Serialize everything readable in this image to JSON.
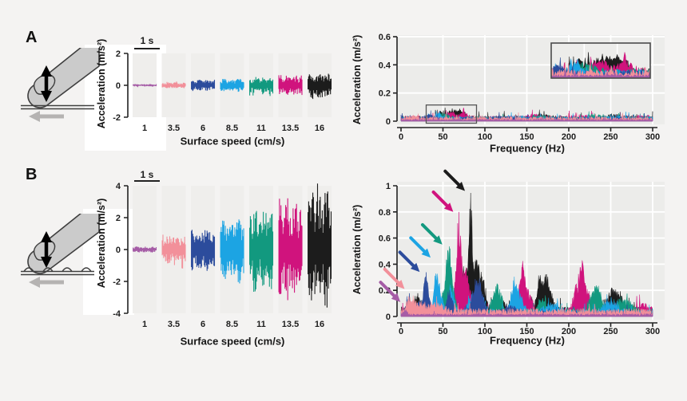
{
  "panel_labels": {
    "a": "A",
    "b": "B"
  },
  "icons": {
    "a": "finger-sliding-on-smooth-surface",
    "b": "finger-sliding-on-textured-surface"
  },
  "colors": {
    "page_bg": "#F4F3F2",
    "plot_bg": "#ECECEA",
    "strip_bg": "#EFEEEC",
    "grid": "#FFFFFF",
    "axis": "#222222",
    "annotation_box": "#555555",
    "slide_arrow": "#B5B3B2",
    "speed_palette": [
      "#A55CA6",
      "#F2909A",
      "#2C4C9C",
      "#1CA4E3",
      "#12997F",
      "#D0137D",
      "#1C1C1C"
    ]
  },
  "chart_data": [
    {
      "id": "A-time",
      "type": "line",
      "xlabel": "Surface speed (cm/s)",
      "ylabel": "Acceleration (m/s²)",
      "scalebar": "1 s",
      "categories": [
        "1",
        "3.5",
        "6",
        "8.5",
        "11",
        "13.5",
        "16"
      ],
      "colors": [
        "#A55CA6",
        "#F2909A",
        "#2C4C9C",
        "#1CA4E3",
        "#12997F",
        "#D0137D",
        "#1C1C1C"
      ],
      "amplitude": [
        0.08,
        0.17,
        0.33,
        0.4,
        0.55,
        0.62,
        0.8
      ],
      "ylim": [
        -2,
        2
      ],
      "yticks": [
        "2",
        "0",
        "-2"
      ]
    },
    {
      "id": "A-spec",
      "type": "area",
      "xlabel": "Frequency (Hz)",
      "ylabel": "Acceleration (m/s²)",
      "xlim": [
        0,
        300
      ],
      "ylim": [
        0,
        0.6
      ],
      "xticks": [
        "0",
        "50",
        "100",
        "150",
        "200",
        "250",
        "300"
      ],
      "yticks": [
        "0",
        "0.2",
        "0.4",
        "0.6"
      ],
      "zoom_box": {
        "x": [
          30,
          90
        ],
        "y": [
          0,
          0.115
        ]
      },
      "inset_region": {
        "x": [
          30,
          90
        ],
        "y": [
          0,
          0.13
        ]
      },
      "series": [
        {
          "name": "1 cm/s",
          "color": "#A55CA6",
          "baseline": 0.01,
          "peaks": []
        },
        {
          "name": "3.5 cm/s",
          "color": "#F2909A",
          "baseline": 0.022,
          "peaks": [
            [
              15,
              0.012,
              8
            ]
          ]
        },
        {
          "name": "6 cm/s",
          "color": "#2C4C9C",
          "baseline": 0.02,
          "peaks": [
            [
              10,
              0.02,
              3
            ],
            [
              33,
              0.028,
              4
            ],
            [
              120,
              0.01,
              10
            ]
          ]
        },
        {
          "name": "8.5 cm/s",
          "color": "#1CA4E3",
          "baseline": 0.022,
          "peaks": [
            [
              45,
              0.032,
              4
            ],
            [
              140,
              0.015,
              8
            ],
            [
              255,
              0.012,
              10
            ]
          ]
        },
        {
          "name": "11 cm/s",
          "color": "#12997F",
          "baseline": 0.024,
          "peaks": [
            [
              50,
              0.04,
              5
            ],
            [
              165,
              0.015,
              8
            ],
            [
              230,
              0.02,
              8
            ]
          ]
        },
        {
          "name": "13.5 cm/s",
          "color": "#D0137D",
          "baseline": 0.026,
          "peaks": [
            [
              58,
              0.05,
              5
            ],
            [
              75,
              0.04,
              4
            ],
            [
              160,
              0.022,
              6
            ],
            [
              215,
              0.015,
              8
            ],
            [
              290,
              0.02,
              6
            ]
          ]
        },
        {
          "name": "16 cm/s",
          "color": "#1C1C1C",
          "baseline": 0.026,
          "peaks": [
            [
              48,
              0.045,
              4
            ],
            [
              62,
              0.062,
              5
            ],
            [
              72,
              0.05,
              4
            ],
            [
              170,
              0.02,
              6
            ],
            [
              255,
              0.018,
              8
            ]
          ]
        }
      ]
    },
    {
      "id": "B-time",
      "type": "line",
      "xlabel": "Surface speed (cm/s)",
      "ylabel": "Acceleration (m/s²)",
      "scalebar": "1 s",
      "categories": [
        "1",
        "3.5",
        "6",
        "8.5",
        "11",
        "13.5",
        "16"
      ],
      "colors": [
        "#A55CA6",
        "#F2909A",
        "#2C4C9C",
        "#1CA4E3",
        "#12997F",
        "#D0137D",
        "#1C1C1C"
      ],
      "amplitude": [
        0.18,
        0.85,
        1.35,
        1.9,
        2.4,
        2.95,
        3.6
      ],
      "ylim": [
        -4,
        4
      ],
      "yticks": [
        "4",
        "2",
        "0",
        "-2",
        "-4"
      ]
    },
    {
      "id": "B-spec",
      "type": "area",
      "xlabel": "Frequency (Hz)",
      "ylabel": "Acceleration (m/s²)",
      "xlim": [
        0,
        300
      ],
      "ylim": [
        0,
        1
      ],
      "xticks": [
        "0",
        "50",
        "100",
        "150",
        "200",
        "250",
        "300"
      ],
      "yticks": [
        "0",
        "0.2",
        "0.4",
        "0.6",
        "0.8",
        "1"
      ],
      "series": [
        {
          "name": "1 cm/s",
          "color": "#A55CA6",
          "baseline": 0.015,
          "peaks": [
            [
              5,
              0.045,
              2
            ]
          ],
          "arrow": {
            "f": 4,
            "a": 0.08
          }
        },
        {
          "name": "3.5 cm/s",
          "color": "#F2909A",
          "baseline": 0.042,
          "peaks": [
            [
              11,
              0.125,
              4
            ],
            [
              22,
              0.06,
              5
            ],
            [
              35,
              0.05,
              6
            ],
            [
              48,
              0.04,
              6
            ]
          ],
          "arrow": {
            "f": 9,
            "a": 0.18
          }
        },
        {
          "name": "6 cm/s",
          "color": "#2C4C9C",
          "baseline": 0.032,
          "peaks": [
            [
              9,
              0.1,
              3
            ],
            [
              21,
              0.1,
              3
            ],
            [
              29,
              0.26,
              2.5
            ],
            [
              33,
              0.12,
              2.5
            ],
            [
              58,
              0.2,
              3
            ],
            [
              88,
              0.2,
              4
            ],
            [
              95,
              0.18,
              4
            ],
            [
              130,
              0.05,
              8
            ]
          ],
          "arrow": {
            "f": 27,
            "a": 0.31
          }
        },
        {
          "name": "8.5 cm/s",
          "color": "#1CA4E3",
          "baseline": 0.038,
          "peaks": [
            [
              42,
              0.36,
              2.5
            ],
            [
              48,
              0.12,
              3
            ],
            [
              60,
              0.22,
              3
            ],
            [
              84,
              0.15,
              4
            ],
            [
              96,
              0.14,
              4
            ],
            [
              135,
              0.26,
              3.5
            ],
            [
              142,
              0.12,
              4
            ],
            [
              180,
              0.06,
              8
            ],
            [
              250,
              0.1,
              7
            ]
          ],
          "arrow": {
            "f": 40,
            "a": 0.42
          }
        },
        {
          "name": "11 cm/s",
          "color": "#12997F",
          "baseline": 0.042,
          "peaks": [
            [
              50,
              0.15,
              3
            ],
            [
              56,
              0.46,
              2.5
            ],
            [
              61,
              0.24,
              3
            ],
            [
              112,
              0.15,
              4
            ],
            [
              118,
              0.12,
              4
            ],
            [
              168,
              0.1,
              5
            ],
            [
              228,
              0.1,
              5
            ],
            [
              235,
              0.16,
              5
            ],
            [
              265,
              0.12,
              8
            ]
          ],
          "arrow": {
            "f": 54,
            "a": 0.52
          }
        },
        {
          "name": "13.5 cm/s",
          "color": "#D0137D",
          "baseline": 0.048,
          "peaks": [
            [
              64,
              0.18,
              3
            ],
            [
              69,
              0.68,
              2.2
            ],
            [
              74,
              0.34,
              3
            ],
            [
              80,
              0.22,
              3
            ],
            [
              139,
              0.12,
              4
            ],
            [
              145,
              0.33,
              2.5
            ],
            [
              152,
              0.16,
              4
            ],
            [
              210,
              0.22,
              4
            ],
            [
              216,
              0.31,
              2.5
            ],
            [
              222,
              0.16,
              4
            ],
            [
              250,
              0.07,
              8
            ],
            [
              290,
              0.05,
              8
            ]
          ],
          "arrow": {
            "f": 67,
            "a": 0.77
          }
        },
        {
          "name": "16 cm/s",
          "color": "#1C1C1C",
          "baseline": 0.05,
          "peaks": [
            [
              20,
              0.12,
              4
            ],
            [
              73,
              0.25,
              2.5
            ],
            [
              78,
              0.36,
              2.5
            ],
            [
              83,
              0.88,
              1.8
            ],
            [
              88,
              0.38,
              2.5
            ],
            [
              93,
              0.28,
              3
            ],
            [
              99,
              0.2,
              3
            ],
            [
              120,
              0.08,
              5
            ],
            [
              150,
              0.1,
              4
            ],
            [
              165,
              0.26,
              3
            ],
            [
              172,
              0.24,
              3
            ],
            [
              178,
              0.14,
              4
            ],
            [
              248,
              0.09,
              5
            ],
            [
              255,
              0.11,
              5
            ],
            [
              262,
              0.08,
              5
            ]
          ],
          "arrow": {
            "f": 81,
            "a": 0.93
          }
        }
      ]
    }
  ]
}
